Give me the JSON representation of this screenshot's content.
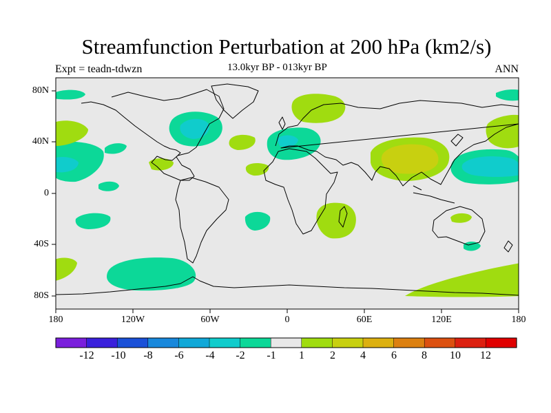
{
  "title": "Streamfunction Perturbation at 200 hPa (km2/s)",
  "left_label": "Expt = teadn-tdwzn",
  "center_label": "13.0kyr BP - 013kyr BP",
  "right_label": "ANN",
  "lat_ticks": [
    {
      "label": "80N",
      "lat": 80
    },
    {
      "label": "40N",
      "lat": 40
    },
    {
      "label": "0",
      "lat": 0
    },
    {
      "label": "40S",
      "lat": -40
    },
    {
      "label": "80S",
      "lat": -80
    }
  ],
  "lon_ticks": [
    {
      "label": "180",
      "lon": -180
    },
    {
      "label": "120W",
      "lon": -120
    },
    {
      "label": "60W",
      "lon": -60
    },
    {
      "label": "0",
      "lon": 0
    },
    {
      "label": "60E",
      "lon": 60
    },
    {
      "label": "120E",
      "lon": 120
    },
    {
      "label": "180",
      "lon": 180
    }
  ],
  "colorbar": {
    "colors": [
      "#7a1fdc",
      "#3a20dc",
      "#1a50d8",
      "#1888dc",
      "#10a8d8",
      "#10cccc",
      "#0cd898",
      "#e8e8e8",
      "#a0dc10",
      "#c8d010",
      "#dcb010",
      "#dc8010",
      "#dc5010",
      "#dc2010",
      "#e00000"
    ],
    "labels": [
      "-12",
      "-10",
      "-8",
      "-6",
      "-4",
      "-2",
      "-1",
      "1",
      "2",
      "4",
      "6",
      "8",
      "10",
      "12"
    ]
  },
  "field_colors": {
    "background": "#e8e8e8",
    "neg_weak": "#0cd898",
    "neg_mid": "#10cccc",
    "pos_weak": "#a0dc10",
    "pos_mid": "#c8d010"
  },
  "chart_data": {
    "type": "contour-map",
    "variable": "Streamfunction Perturbation at 200 hPa",
    "units": "km2/s",
    "projection": "cylindrical equidistant",
    "lon_range": [
      -180,
      180
    ],
    "lat_range": [
      -90,
      90
    ],
    "features": [
      {
        "region": "northeast North America",
        "lon": -72,
        "lat": 50,
        "value": -3
      },
      {
        "region": "Mediterranean / Europe",
        "lon": 18,
        "lat": 42,
        "value": -2
      },
      {
        "region": "Scandinavia",
        "lon": 20,
        "lat": 65,
        "value": 1.5
      },
      {
        "region": "Tibet / South Asia",
        "lon": 92,
        "lat": 30,
        "value": 2.5
      },
      {
        "region": "western North Pacific",
        "lon": 148,
        "lat": 22,
        "value": -3
      },
      {
        "region": "central North Pacific",
        "lon": -168,
        "lat": 20,
        "value": -3
      },
      {
        "region": "southern Africa",
        "lon": 35,
        "lat": -22,
        "value": 1.5
      },
      {
        "region": "South Pacific",
        "lon": -98,
        "lat": -62,
        "value": -2
      },
      {
        "region": "Southern Ocean (Indian sector)",
        "lon": 145,
        "lat": -75,
        "value": 1.5
      }
    ]
  }
}
